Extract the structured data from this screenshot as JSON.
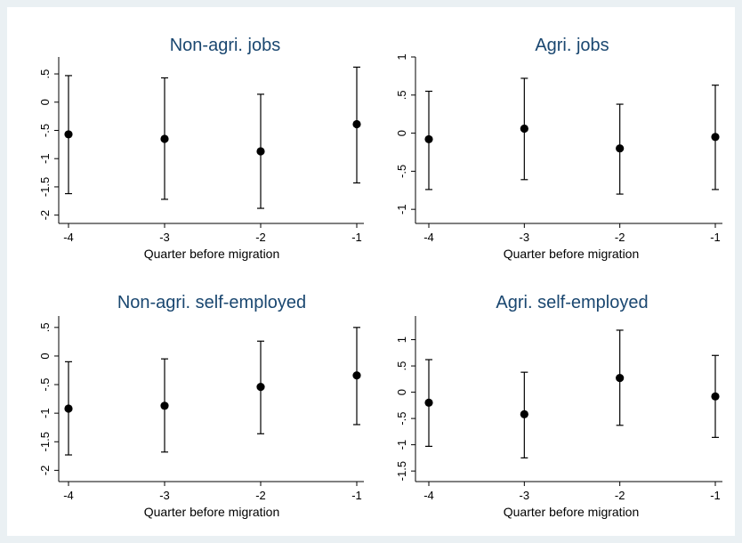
{
  "chart_data": [
    {
      "type": "scatter",
      "title": "Non-agri. jobs",
      "xlabel": "Quarter before migration",
      "ylabel": "",
      "x": [
        -4,
        -3,
        -2,
        -1
      ],
      "xticks": [
        "-4",
        "-3",
        "-2",
        "-1"
      ],
      "xlim": [
        -4,
        -1
      ],
      "ylim": [
        -2.1,
        0.8
      ],
      "yticks": [
        0.5,
        0,
        -0.5,
        -1,
        -1.5,
        -2
      ],
      "ytick_labels": [
        ".5",
        "0",
        "-.5",
        "-1",
        "-1.5",
        "-2"
      ],
      "series": [
        {
          "values": [
            -0.57,
            -0.65,
            -0.87,
            -0.39
          ],
          "ci_low": [
            -1.62,
            -1.72,
            -1.88,
            -1.43
          ],
          "ci_high": [
            0.47,
            0.43,
            0.14,
            0.62
          ]
        }
      ],
      "grid": false
    },
    {
      "type": "scatter",
      "title": "Agri. jobs",
      "xlabel": "Quarter before migration",
      "ylabel": "",
      "x": [
        -4,
        -3,
        -2,
        -1
      ],
      "xticks": [
        "-4",
        "-3",
        "-2",
        "-1"
      ],
      "xlim": [
        -4,
        -1
      ],
      "ylim": [
        -1.15,
        1.0
      ],
      "yticks": [
        1,
        0.5,
        0,
        -0.5,
        -1
      ],
      "ytick_labels": [
        "1",
        ".5",
        "0",
        "-.5",
        "-1"
      ],
      "series": [
        {
          "values": [
            -0.08,
            0.06,
            -0.2,
            -0.05
          ],
          "ci_low": [
            -0.74,
            -0.61,
            -0.8,
            -0.74
          ],
          "ci_high": [
            0.55,
            0.72,
            0.38,
            0.63
          ]
        }
      ],
      "grid": false
    },
    {
      "type": "scatter",
      "title": "Non-agri. self-employed",
      "xlabel": "Quarter before migration",
      "ylabel": "",
      "x": [
        -4,
        -3,
        -2,
        -1
      ],
      "xticks": [
        "-4",
        "-3",
        "-2",
        "-1"
      ],
      "xlim": [
        -4,
        -1
      ],
      "ylim": [
        -2.15,
        0.7
      ],
      "yticks": [
        0.5,
        0,
        -0.5,
        -1,
        -1.5,
        -2
      ],
      "ytick_labels": [
        ".5",
        "0",
        "-.5",
        "-1",
        "-1.5",
        "-2"
      ],
      "series": [
        {
          "values": [
            -0.92,
            -0.87,
            -0.54,
            -0.34
          ],
          "ci_low": [
            -1.73,
            -1.68,
            -1.36,
            -1.2
          ],
          "ci_high": [
            -0.1,
            -0.05,
            0.26,
            0.5
          ]
        }
      ],
      "grid": false
    },
    {
      "type": "scatter",
      "title": "Agri. self-employed",
      "xlabel": "Quarter before migration",
      "ylabel": "",
      "x": [
        -4,
        -3,
        -2,
        -1
      ],
      "xticks": [
        "-4",
        "-3",
        "-2",
        "-1"
      ],
      "xlim": [
        -4,
        -1
      ],
      "ylim": [
        -1.65,
        1.45
      ],
      "yticks": [
        1,
        0.5,
        0,
        -0.5,
        -1,
        -1.5
      ],
      "ytick_labels": [
        "1",
        ".5",
        "0",
        "-.5",
        "-1",
        "-1.5"
      ],
      "series": [
        {
          "values": [
            -0.2,
            -0.42,
            0.27,
            -0.08
          ],
          "ci_low": [
            -1.03,
            -1.25,
            -0.63,
            -0.86
          ],
          "ci_high": [
            0.62,
            0.38,
            1.18,
            0.7
          ]
        }
      ],
      "grid": false
    }
  ]
}
